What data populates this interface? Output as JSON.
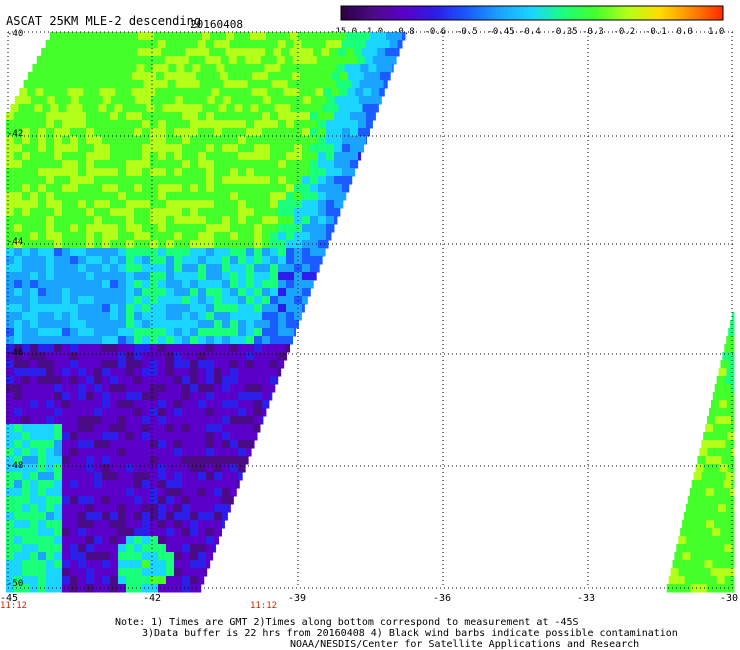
{
  "title": "ASCAT 25KM MLE-2 descending",
  "date": "20160408",
  "colorbar": {
    "labels": [
      "-15.0",
      "-1.0",
      "-0.8",
      "-0.6",
      "-0.5",
      "-0.45",
      "-0.4",
      "-0.35",
      "-0.3",
      "-0.2",
      "-0.1",
      "0.0",
      "1.0"
    ],
    "colors": [
      "#2a0040",
      "#4b0a86",
      "#5a00c8",
      "#2a1ee8",
      "#1a5cff",
      "#1aa4ff",
      "#1ad6ff",
      "#1aff7a",
      "#44ff2a",
      "#b4ff1a",
      "#ffde00",
      "#ff8a00",
      "#ff2a00"
    ]
  },
  "map": {
    "lat_labels": [
      "-40",
      "-42",
      "-44",
      "-46",
      "-48",
      "-50"
    ],
    "lon_labels": [
      "-45",
      "-42",
      "-39",
      "-36",
      "-33",
      "-30"
    ],
    "time_labels": [
      "11:12",
      "11:12"
    ]
  },
  "notes": {
    "line1": "Note: 1) Times are GMT 2)Times along bottom correspond to measurement at -45S",
    "line2": "3)Data buffer is 22 hrs from 20160408 4) Black wind barbs indicate possible contamination",
    "line3": "NOAA/NESDIS/Center for Satellite Applications and Research"
  }
}
